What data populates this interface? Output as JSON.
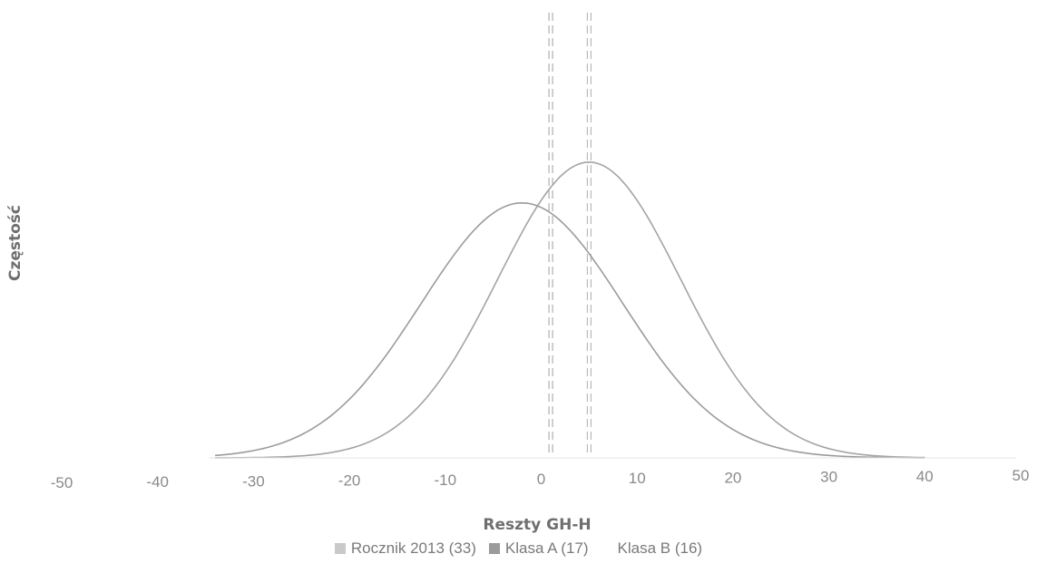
{
  "chart_data": {
    "type": "line",
    "title": "",
    "xlabel": "Reszty GH-H",
    "ylabel": "Częstość",
    "xlim": [
      -50,
      50
    ],
    "xticks": [
      -50,
      -40,
      -30,
      -20,
      -10,
      0,
      10,
      20,
      30,
      40,
      50
    ],
    "grid": false,
    "legend_position": "bottom",
    "series": [
      {
        "name": "Rocznik 2013 (33)",
        "kind": "swatch",
        "color": "#c9c9c9"
      },
      {
        "name": "Klasa A (17)",
        "kind": "density",
        "mean": -2,
        "sd": 10.5,
        "peak": 0.75,
        "color": "#9b9b9b",
        "marker_x": 1,
        "marker_color": "#a8a8a8"
      },
      {
        "name": "Klasa B (16)",
        "kind": "density",
        "mean": 5,
        "sd": 9.5,
        "peak": 0.87,
        "color": "#a4a4a4",
        "marker_x": 5,
        "marker_color": "#b3b3b3"
      }
    ]
  }
}
